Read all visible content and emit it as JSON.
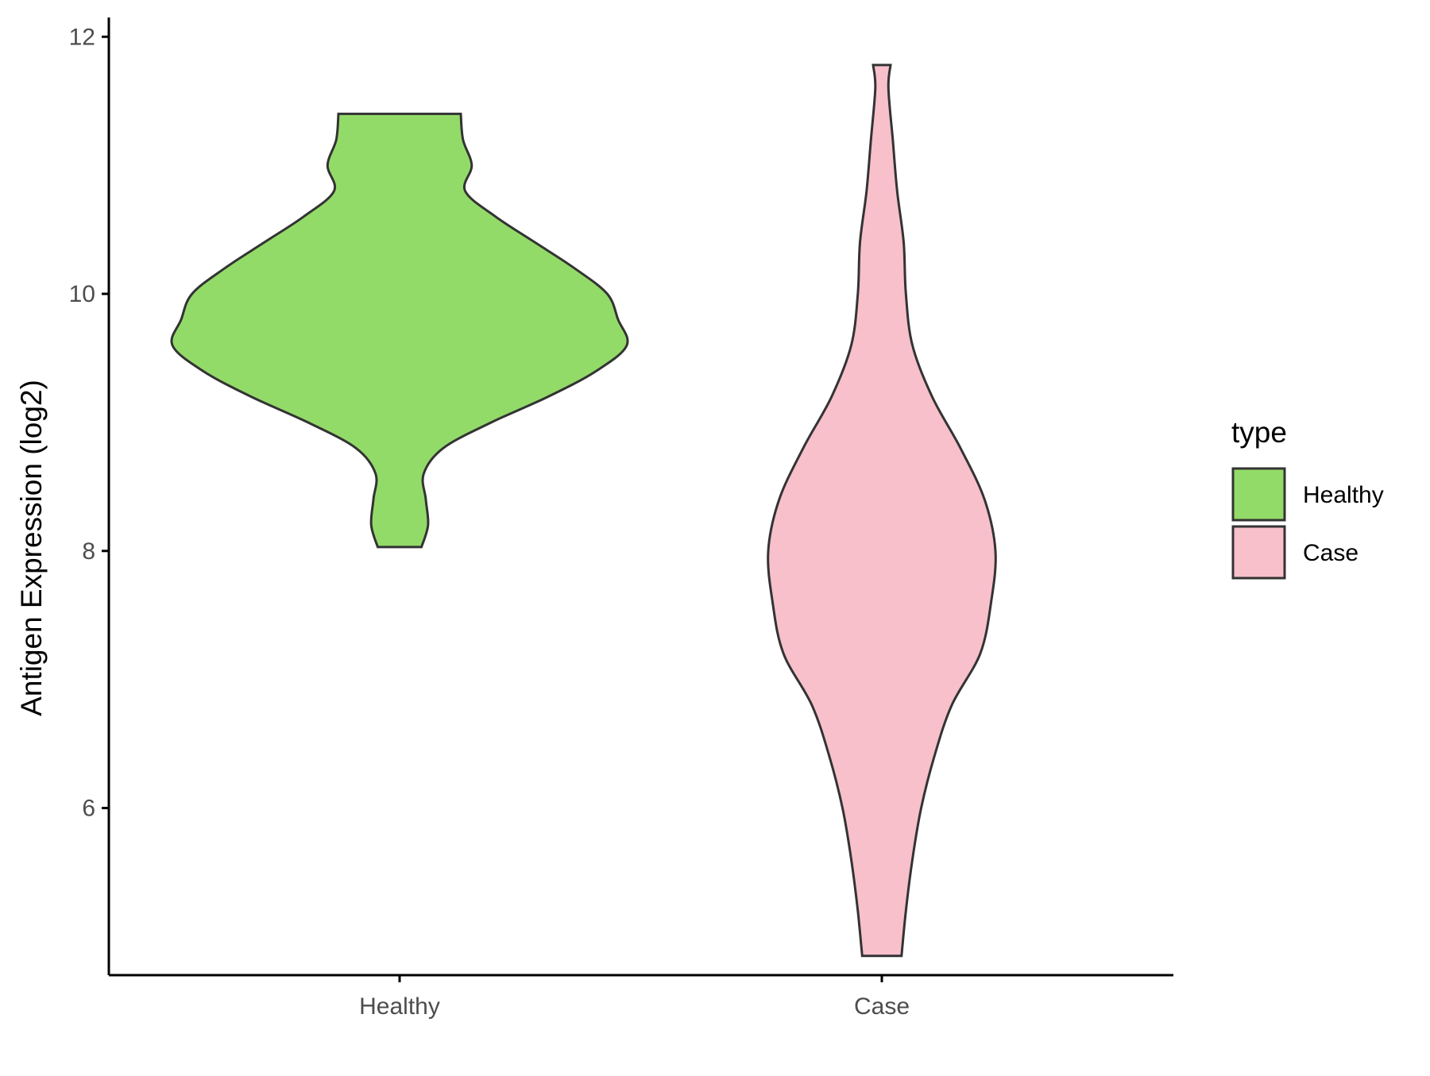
{
  "chart_data": {
    "type": "violin",
    "ylabel": "Antigen Expression (log2)",
    "xlabel": "",
    "ylim": [
      4.7,
      12.15
    ],
    "y_ticks": [
      6,
      8,
      10,
      12
    ],
    "categories": [
      "Healthy",
      "Case"
    ],
    "legend": {
      "title": "type",
      "position": "right"
    },
    "grid": false,
    "series": [
      {
        "name": "Healthy",
        "color": "#93DB69",
        "y_min": 8.03,
        "y_max": 11.4,
        "density": [
          [
            8.03,
            0.1
          ],
          [
            8.2,
            0.13
          ],
          [
            8.4,
            0.12
          ],
          [
            8.6,
            0.11
          ],
          [
            8.8,
            0.2
          ],
          [
            9.0,
            0.42
          ],
          [
            9.2,
            0.68
          ],
          [
            9.4,
            0.9
          ],
          [
            9.6,
            1.04
          ],
          [
            9.8,
            1.0
          ],
          [
            10.0,
            0.95
          ],
          [
            10.2,
            0.8
          ],
          [
            10.4,
            0.62
          ],
          [
            10.6,
            0.44
          ],
          [
            10.8,
            0.3
          ],
          [
            11.0,
            0.33
          ],
          [
            11.2,
            0.29
          ],
          [
            11.4,
            0.28
          ]
        ]
      },
      {
        "name": "Case",
        "color": "#F7C0CB",
        "y_min": 4.85,
        "y_max": 11.78,
        "density": [
          [
            4.85,
            0.09
          ],
          [
            5.2,
            0.11
          ],
          [
            5.6,
            0.14
          ],
          [
            6.0,
            0.18
          ],
          [
            6.4,
            0.24
          ],
          [
            6.8,
            0.32
          ],
          [
            7.2,
            0.45
          ],
          [
            7.6,
            0.5
          ],
          [
            8.0,
            0.52
          ],
          [
            8.4,
            0.47
          ],
          [
            8.8,
            0.36
          ],
          [
            9.2,
            0.23
          ],
          [
            9.6,
            0.14
          ],
          [
            10.0,
            0.11
          ],
          [
            10.4,
            0.1
          ],
          [
            10.8,
            0.07
          ],
          [
            11.2,
            0.05
          ],
          [
            11.6,
            0.03
          ],
          [
            11.78,
            0.04
          ]
        ]
      }
    ]
  }
}
